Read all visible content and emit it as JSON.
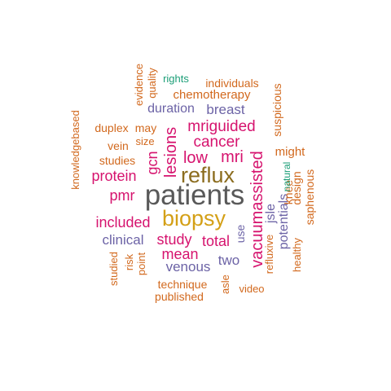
{
  "colors": {
    "gray": "#595959",
    "gold": "#D4A017",
    "brown": "#8C6D1F",
    "magenta": "#D6136E",
    "purple": "#6C63A6",
    "orange": "#D2691E",
    "teal": "#1B9E77"
  },
  "words": [
    {
      "id": "patients",
      "text": "patients"
    },
    {
      "id": "reflux",
      "text": "reflux"
    },
    {
      "id": "biopsy",
      "text": "biopsy"
    },
    {
      "id": "vacuumassisted",
      "text": "vacuumassisted"
    },
    {
      "id": "lesions",
      "text": "lesions"
    },
    {
      "id": "mriguided",
      "text": "mriguided"
    },
    {
      "id": "cancer",
      "text": "cancer"
    },
    {
      "id": "low",
      "text": "low"
    },
    {
      "id": "mri",
      "text": "mri"
    },
    {
      "id": "protein",
      "text": "protein"
    },
    {
      "id": "pmr",
      "text": "pmr"
    },
    {
      "id": "included",
      "text": "included"
    },
    {
      "id": "study",
      "text": "study"
    },
    {
      "id": "total",
      "text": "total"
    },
    {
      "id": "mean",
      "text": "mean"
    },
    {
      "id": "gcn",
      "text": "gcn"
    },
    {
      "id": "breast",
      "text": "breast"
    },
    {
      "id": "duration",
      "text": "duration"
    },
    {
      "id": "clinical",
      "text": "clinical"
    },
    {
      "id": "venous",
      "text": "venous"
    },
    {
      "id": "two",
      "text": "two"
    },
    {
      "id": "jsle",
      "text": "jsle"
    },
    {
      "id": "potentials",
      "text": "potentials"
    },
    {
      "id": "use",
      "text": "use"
    },
    {
      "id": "chemotherapy",
      "text": "chemotherapy"
    },
    {
      "id": "individuals",
      "text": "individuals"
    },
    {
      "id": "might",
      "text": "might"
    },
    {
      "id": "suspicious",
      "text": "suspicious"
    },
    {
      "id": "knee",
      "text": "knee"
    },
    {
      "id": "design",
      "text": "design"
    },
    {
      "id": "saphenous",
      "text": "saphenous"
    },
    {
      "id": "healthy",
      "text": "healthy"
    },
    {
      "id": "refluxive",
      "text": "refluxive"
    },
    {
      "id": "natural",
      "text": "natural"
    },
    {
      "id": "rights",
      "text": "rights"
    },
    {
      "id": "quality",
      "text": "quality"
    },
    {
      "id": "evidence",
      "text": "evidence"
    },
    {
      "id": "duplex",
      "text": "duplex"
    },
    {
      "id": "may",
      "text": "may"
    },
    {
      "id": "vein",
      "text": "vein"
    },
    {
      "id": "size",
      "text": "size"
    },
    {
      "id": "studies",
      "text": "studies"
    },
    {
      "id": "knowledgebased",
      "text": "knowledgebased"
    },
    {
      "id": "risk",
      "text": "risk"
    },
    {
      "id": "point",
      "text": "point"
    },
    {
      "id": "studied",
      "text": "studied"
    },
    {
      "id": "technique",
      "text": "technique"
    },
    {
      "id": "published",
      "text": "published"
    },
    {
      "id": "asle",
      "text": "asle"
    },
    {
      "id": "video",
      "text": "video"
    }
  ]
}
